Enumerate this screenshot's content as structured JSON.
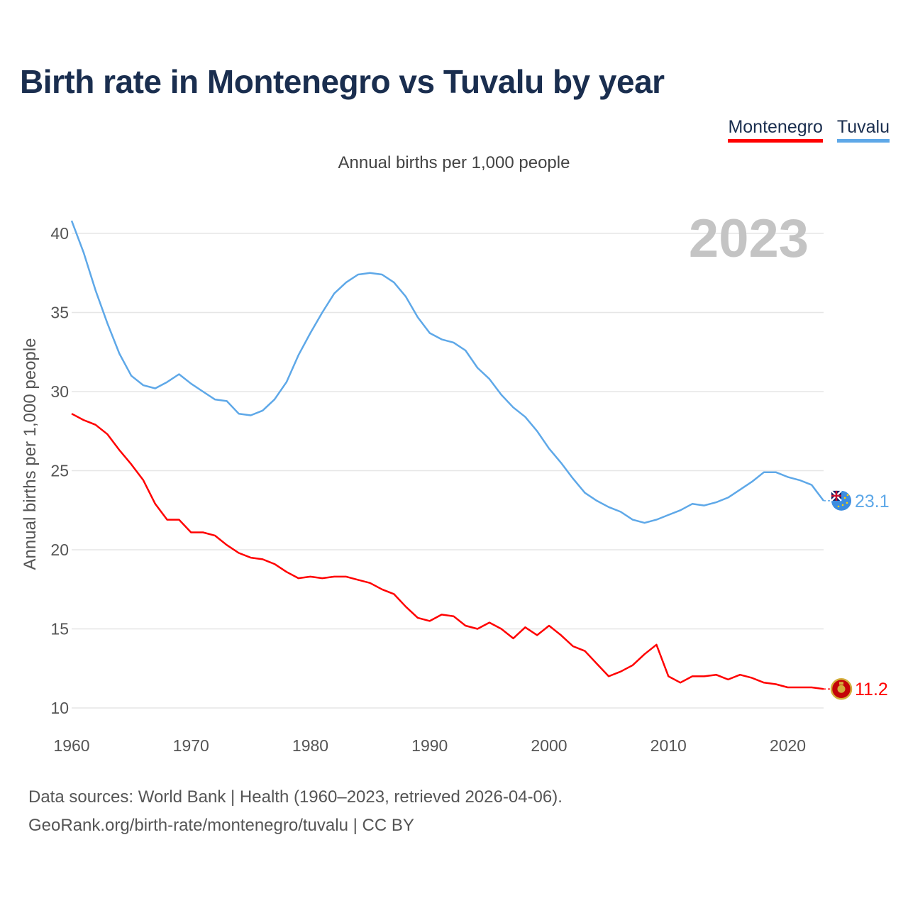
{
  "title": "Birth rate in Montenegro vs Tuvalu by year",
  "legend": {
    "montenegro": "Montenegro",
    "tuvalu": "Tuvalu"
  },
  "subtitle": "Annual births per 1,000 people",
  "footer": {
    "line1": "Data sources: World Bank | Health (1960–2023, retrieved 2026-04-06).",
    "line2": "GeoRank.org/birth-rate/montenegro/tuvalu | CC BY"
  },
  "colors": {
    "montenegro": "#ff0000",
    "tuvalu": "#5ea8e8",
    "grid": "#e6e6e6"
  },
  "chart_data": {
    "type": "line",
    "title": "Birth rate in Montenegro vs Tuvalu by year",
    "ylabel": "Annual births per 1,000 people",
    "xlabel": "",
    "xlim": [
      1960,
      2023
    ],
    "ylim": [
      9.5,
      41
    ],
    "yticks": [
      10,
      15,
      20,
      25,
      30,
      35,
      40
    ],
    "xticks": [
      1960,
      1970,
      1980,
      1990,
      2000,
      2010,
      2020
    ],
    "year_label": "2023",
    "x": [
      1960,
      1961,
      1962,
      1963,
      1964,
      1965,
      1966,
      1967,
      1968,
      1969,
      1970,
      1971,
      1972,
      1973,
      1974,
      1975,
      1976,
      1977,
      1978,
      1979,
      1980,
      1981,
      1982,
      1983,
      1984,
      1985,
      1986,
      1987,
      1988,
      1989,
      1990,
      1991,
      1992,
      1993,
      1994,
      1995,
      1996,
      1997,
      1998,
      1999,
      2000,
      2001,
      2002,
      2003,
      2004,
      2005,
      2006,
      2007,
      2008,
      2009,
      2010,
      2011,
      2012,
      2013,
      2014,
      2015,
      2016,
      2017,
      2018,
      2019,
      2020,
      2021,
      2022,
      2023
    ],
    "series": [
      {
        "name": "Montenegro",
        "end_label": "11.2",
        "values": [
          28.6,
          28.2,
          27.9,
          27.3,
          26.3,
          25.4,
          24.4,
          22.9,
          21.9,
          21.9,
          21.1,
          21.1,
          20.9,
          20.3,
          19.8,
          19.5,
          19.4,
          19.1,
          18.6,
          18.2,
          18.3,
          18.2,
          18.3,
          18.3,
          18.1,
          17.9,
          17.5,
          17.2,
          16.4,
          15.7,
          15.5,
          15.9,
          15.8,
          15.2,
          15.0,
          15.4,
          15.0,
          14.4,
          15.1,
          14.6,
          15.2,
          14.6,
          13.9,
          13.6,
          12.8,
          12.0,
          12.3,
          12.7,
          13.4,
          14.0,
          12.0,
          11.6,
          12.0,
          12.0,
          12.1,
          11.8,
          12.1,
          11.9,
          11.6,
          11.5,
          11.3,
          11.3,
          11.3,
          11.2
        ]
      },
      {
        "name": "Tuvalu",
        "end_label": "23.1",
        "values": [
          40.8,
          38.8,
          36.4,
          34.3,
          32.4,
          31.0,
          30.4,
          30.2,
          30.6,
          31.1,
          30.5,
          30.0,
          29.5,
          29.4,
          28.6,
          28.5,
          28.8,
          29.5,
          30.6,
          32.3,
          33.7,
          35.0,
          36.2,
          36.9,
          37.4,
          37.5,
          37.4,
          36.9,
          36.0,
          34.7,
          33.7,
          33.3,
          33.1,
          32.6,
          31.5,
          30.8,
          29.8,
          29.0,
          28.4,
          27.5,
          26.4,
          25.5,
          24.5,
          23.6,
          23.1,
          22.7,
          22.4,
          21.9,
          21.7,
          21.9,
          22.2,
          22.5,
          22.9,
          22.8,
          23.0,
          23.3,
          23.8,
          24.3,
          24.9,
          24.9,
          24.6,
          24.4,
          24.1,
          23.1
        ]
      }
    ]
  }
}
